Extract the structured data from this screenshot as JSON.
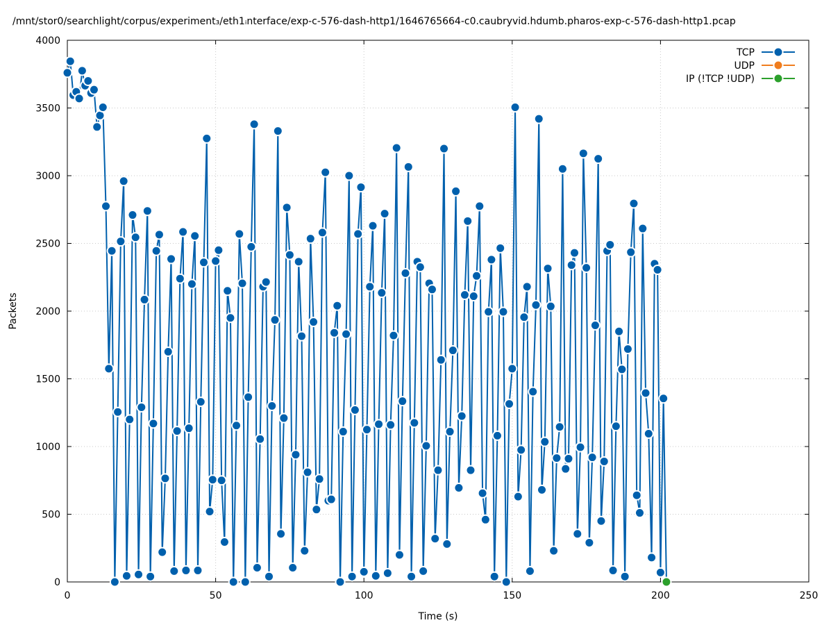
{
  "chart_data": {
    "type": "line",
    "title": "/mnt/stor0/searchlight/corpus/experiment₃/eth1ᵢnterface/exp-c-576-dash-http1/1646765664-c0.caubryvid.hdumb.pharos-exp-c-576-dash-http1.pcap",
    "xlabel": "Time (s)",
    "ylabel": "Packets",
    "xlim": [
      0,
      250
    ],
    "ylim": [
      0,
      4000
    ],
    "xticks": [
      0,
      50,
      100,
      150,
      200,
      250
    ],
    "yticks": [
      0,
      500,
      1000,
      1500,
      2000,
      2500,
      3000,
      3500,
      4000
    ],
    "xtick_labels": [
      "0",
      "50",
      "100",
      "150",
      "200",
      "250"
    ],
    "ytick_labels": [
      "0",
      "500",
      "1000",
      "1500",
      "2000",
      "2500",
      "3000",
      "3500",
      "4000"
    ],
    "grid": true,
    "legend_position": "top-right",
    "series": [
      {
        "name": "TCP",
        "color": "#0060ad",
        "x": [
          0,
          1,
          2,
          3,
          4,
          5,
          6,
          7,
          8,
          9,
          10,
          11,
          12,
          13,
          14,
          15,
          16,
          17,
          18,
          19,
          20,
          21,
          22,
          23,
          24,
          25,
          26,
          27,
          28,
          29,
          30,
          31,
          32,
          33,
          34,
          35,
          36,
          37,
          38,
          39,
          40,
          41,
          42,
          43,
          44,
          45,
          46,
          47,
          48,
          49,
          50,
          51,
          52,
          53,
          54,
          55,
          56,
          57,
          58,
          59,
          60,
          61,
          62,
          63,
          64,
          65,
          66,
          67,
          68,
          69,
          70,
          71,
          72,
          73,
          74,
          75,
          76,
          77,
          78,
          79,
          80,
          81,
          82,
          83,
          84,
          85,
          86,
          87,
          88,
          89,
          90,
          91,
          92,
          93,
          94,
          95,
          96,
          97,
          98,
          99,
          100,
          101,
          102,
          103,
          104,
          105,
          106,
          107,
          108,
          109,
          110,
          111,
          112,
          113,
          114,
          115,
          116,
          117,
          118,
          119,
          120,
          121,
          122,
          123,
          124,
          125,
          126,
          127,
          128,
          129,
          130,
          131,
          132,
          133,
          134,
          135,
          136,
          137,
          138,
          139,
          140,
          141,
          142,
          143,
          144,
          145,
          146,
          147,
          148,
          149,
          150,
          151,
          152,
          153,
          154,
          155,
          156,
          157,
          158,
          159,
          160,
          161,
          162,
          163,
          164,
          165,
          166,
          167,
          168,
          169,
          170,
          171,
          172,
          173,
          174,
          175,
          176,
          177,
          178,
          179,
          180,
          181,
          182,
          183,
          184,
          185,
          186,
          187,
          188,
          189,
          190,
          191,
          192,
          193,
          194,
          195,
          196,
          197,
          198,
          199,
          200,
          201,
          202
        ],
        "values": [
          3760,
          3845,
          3595,
          3620,
          3570,
          3775,
          3665,
          3700,
          3610,
          3635,
          3360,
          3445,
          3505,
          2775,
          1575,
          2445,
          0,
          1255,
          2515,
          2960,
          45,
          1200,
          2710,
          2545,
          55,
          1290,
          2085,
          2740,
          40,
          1170,
          2445,
          2565,
          220,
          765,
          1700,
          2385,
          80,
          1115,
          2240,
          2585,
          85,
          1135,
          2200,
          2555,
          85,
          1330,
          2360,
          3275,
          520,
          755,
          2370,
          2450,
          750,
          295,
          2150,
          1950,
          0,
          1155,
          2570,
          2205,
          0,
          1365,
          2475,
          3380,
          105,
          1055,
          2180,
          2215,
          40,
          1300,
          1935,
          3330,
          355,
          1210,
          2765,
          2415,
          105,
          940,
          2365,
          1815,
          230,
          810,
          2535,
          1920,
          535,
          760,
          2580,
          3025,
          600,
          610,
          1840,
          2040,
          0,
          1110,
          1830,
          3000,
          40,
          1270,
          2570,
          2915,
          75,
          1125,
          2180,
          2630,
          45,
          1165,
          2135,
          2720,
          65,
          1160,
          1820,
          3205,
          200,
          1335,
          2280,
          3065,
          40,
          1175,
          2365,
          2325,
          80,
          1005,
          2205,
          2160,
          320,
          825,
          1640,
          3200,
          280,
          1110,
          1710,
          2885,
          695,
          1225,
          2120,
          2665,
          825,
          2110,
          2260,
          2775,
          655,
          460,
          1995,
          2380,
          40,
          1080,
          2465,
          1995,
          0,
          1315,
          1575,
          3505,
          630,
          975,
          1955,
          2180,
          80,
          1405,
          2045,
          3420,
          680,
          1035,
          2315,
          2035,
          230,
          915,
          1145,
          3050,
          835,
          910,
          2340,
          2430,
          355,
          995,
          3165,
          2320,
          290,
          920,
          1895,
          3125,
          450,
          890,
          2445,
          2490,
          85,
          1150,
          1850,
          1570,
          40,
          1720,
          2435,
          2795,
          640,
          510,
          2610,
          1395,
          1095,
          180,
          2350,
          2305,
          70,
          1355,
          0
        ]
      },
      {
        "name": "UDP",
        "color": "#f07d1e",
        "x": [],
        "values": []
      },
      {
        "name": "IP (!TCP  !UDP)",
        "color": "#2ca02c",
        "x": [
          202
        ],
        "values": [
          0
        ]
      }
    ]
  }
}
